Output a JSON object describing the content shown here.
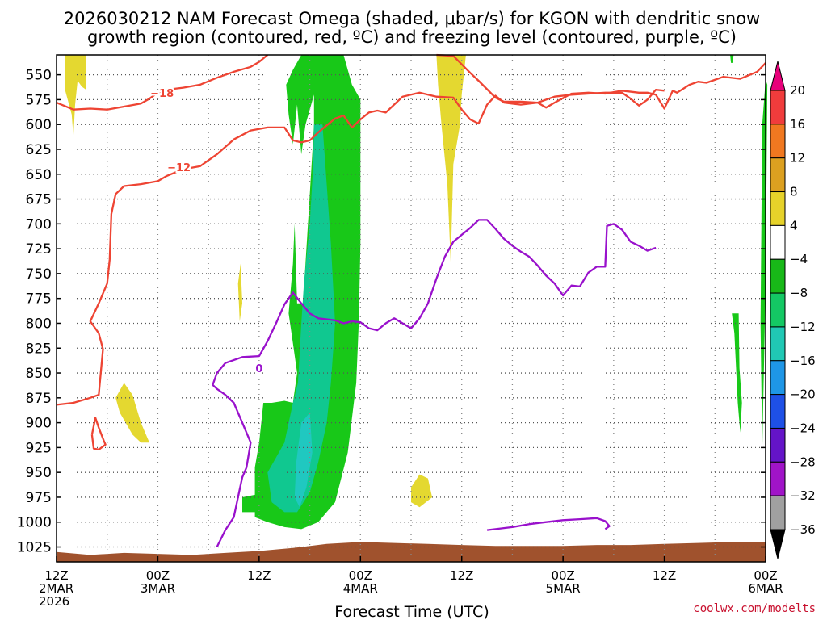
{
  "chart_data": {
    "type": "time-height cross section",
    "title_line1": "2026030212 NAM Forecast Omega (shaded, μbar/s) for KGON with dendritic snow",
    "title_line2": "growth region (contoured, red, ºC) and freezing level (contoured, purple, ºC)",
    "xlabel": "Forecast Time (UTC)",
    "credit": "coolwx.com/modelts",
    "y_axis": {
      "inverted": true,
      "range_hPa": [
        1040,
        530
      ],
      "ticks": [
        "550",
        "575",
        "600",
        "625",
        "650",
        "675",
        "700",
        "725",
        "750",
        "775",
        "800",
        "825",
        "850",
        "875",
        "900",
        "925",
        "950",
        "975",
        "1000",
        "1025"
      ]
    },
    "x_axis": {
      "range_hours": [
        0,
        84
      ],
      "gridlines_every_hours": 6,
      "ticks": [
        {
          "hour": 0,
          "label1": "12Z",
          "label2": "2MAR",
          "label3": "2026"
        },
        {
          "hour": 12,
          "label1": "00Z",
          "label2": "3MAR"
        },
        {
          "hour": 24,
          "label1": "12Z"
        },
        {
          "hour": 36,
          "label1": "00Z",
          "label2": "4MAR"
        },
        {
          "hour": 48,
          "label1": "12Z"
        },
        {
          "hour": 60,
          "label1": "00Z",
          "label2": "5MAR"
        },
        {
          "hour": 72,
          "label1": "12Z"
        },
        {
          "hour": 84,
          "label1": "00Z",
          "label2": "6MAR"
        }
      ]
    },
    "colorbar": {
      "labels": [
        "20",
        "16",
        "12",
        "8",
        "4",
        "−4",
        "−8",
        "−12",
        "−16",
        "−20",
        "−24",
        "−28",
        "−32",
        "−36"
      ],
      "colors": [
        "#e8007a",
        "#f03c3c",
        "#f07820",
        "#dca020",
        "#e6d22a",
        "#ffffff",
        "#18b818",
        "#14c864",
        "#20c8b4",
        "#1e96e6",
        "#1e50e6",
        "#6414c8",
        "#a014c8",
        "#a0a0a0",
        "#000000"
      ]
    },
    "fill_colors": {
      "green": "#18c818",
      "teal": "#10c890",
      "cyan": "#20c8c0",
      "yellow": "#e4d830",
      "ground": "#a0522d"
    },
    "line_colors": {
      "dgz": "#ee4433",
      "freezing": "#9911cc"
    },
    "contours": [
      {
        "name": "minus18-isotherm",
        "label": "−18",
        "label_at": [
          12.5,
          568
        ],
        "points": [
          [
            0,
            578
          ],
          [
            2,
            585
          ],
          [
            4,
            584
          ],
          [
            6,
            585
          ],
          [
            8,
            582
          ],
          [
            10,
            579
          ],
          [
            11,
            574
          ],
          [
            12,
            568
          ],
          [
            13,
            565
          ],
          [
            15,
            563
          ],
          [
            17,
            560
          ],
          [
            19,
            553
          ],
          [
            21,
            547
          ],
          [
            23,
            542
          ],
          [
            24,
            537
          ],
          [
            25,
            530
          ]
        ]
      },
      {
        "name": "minus18-isotherm-right",
        "label": "",
        "points": [
          [
            45,
            530
          ],
          [
            47,
            531
          ],
          [
            49,
            548
          ],
          [
            50,
            556
          ],
          [
            52,
            573
          ],
          [
            53,
            577
          ],
          [
            55,
            577
          ],
          [
            57,
            578
          ],
          [
            58,
            583
          ],
          [
            59,
            578
          ],
          [
            61,
            569
          ],
          [
            63,
            568
          ],
          [
            65,
            569
          ],
          [
            67,
            566
          ],
          [
            69,
            568
          ],
          [
            70,
            568
          ],
          [
            71,
            570
          ],
          [
            72,
            584
          ],
          [
            73,
            566
          ],
          [
            73.5,
            568
          ],
          [
            75,
            560
          ],
          [
            76,
            557
          ],
          [
            77,
            558
          ],
          [
            79,
            552
          ],
          [
            81,
            554
          ],
          [
            83,
            547
          ],
          [
            84,
            538
          ]
        ]
      },
      {
        "name": "minus12-isotherm",
        "label": "−12",
        "label_at": [
          14.5,
          643
        ],
        "points": [
          [
            0,
            882
          ],
          [
            2,
            880
          ],
          [
            4,
            875
          ],
          [
            5,
            872
          ],
          [
            5.5,
            826
          ],
          [
            5,
            810
          ],
          [
            4,
            798
          ],
          [
            5,
            780
          ],
          [
            6,
            760
          ],
          [
            6.3,
            736
          ],
          [
            6.5,
            690
          ],
          [
            7,
            670
          ],
          [
            8,
            662
          ],
          [
            10,
            660
          ],
          [
            12,
            657
          ],
          [
            13,
            652
          ],
          [
            15,
            645
          ],
          [
            17,
            642
          ],
          [
            19,
            630
          ],
          [
            21,
            615
          ],
          [
            23,
            606
          ],
          [
            25,
            603
          ],
          [
            27,
            603
          ],
          [
            28,
            616
          ],
          [
            29,
            618
          ],
          [
            30,
            616
          ],
          [
            31,
            608
          ],
          [
            33,
            594
          ],
          [
            34,
            591
          ],
          [
            35,
            603
          ],
          [
            36,
            595
          ],
          [
            37,
            588
          ],
          [
            38,
            586
          ],
          [
            39,
            588
          ],
          [
            41,
            572
          ],
          [
            43,
            568
          ],
          [
            45,
            572
          ],
          [
            47,
            573
          ],
          [
            48,
            585
          ],
          [
            49,
            595
          ],
          [
            50,
            599
          ],
          [
            51,
            580
          ],
          [
            52,
            571
          ],
          [
            53,
            578
          ],
          [
            55,
            580
          ],
          [
            57,
            578
          ],
          [
            59,
            572
          ],
          [
            61,
            570
          ],
          [
            63,
            569
          ],
          [
            65,
            568
          ],
          [
            67,
            568
          ],
          [
            68,
            574
          ],
          [
            69,
            581
          ],
          [
            70,
            575
          ],
          [
            71,
            565
          ],
          [
            72,
            566
          ]
        ]
      },
      {
        "name": "minus12-isotherm-small",
        "label": "",
        "points": [
          [
            4.2,
            912
          ],
          [
            4.6,
            895
          ],
          [
            5,
            905
          ],
          [
            5.6,
            918
          ],
          [
            5.8,
            922
          ],
          [
            5,
            927
          ],
          [
            4.4,
            926
          ],
          [
            4.2,
            912
          ]
        ]
      },
      {
        "name": "freezing-level",
        "label": "0",
        "label_at": [
          24,
          845
        ],
        "points": [
          [
            19,
            1025
          ],
          [
            20,
            1008
          ],
          [
            21,
            995
          ],
          [
            21.5,
            975
          ],
          [
            22,
            955
          ],
          [
            22.5,
            945
          ],
          [
            23,
            920
          ],
          [
            22,
            900
          ],
          [
            21,
            880
          ],
          [
            20,
            872
          ],
          [
            19,
            866
          ],
          [
            18.5,
            862
          ],
          [
            19,
            850
          ],
          [
            20,
            840
          ],
          [
            22,
            834
          ],
          [
            24,
            833
          ],
          [
            25,
            818
          ],
          [
            26,
            800
          ],
          [
            27,
            781
          ],
          [
            28,
            769
          ],
          [
            29,
            780
          ],
          [
            30,
            790
          ],
          [
            31,
            795
          ],
          [
            32,
            796
          ],
          [
            33,
            797
          ],
          [
            34,
            800
          ],
          [
            35,
            798
          ],
          [
            36,
            799
          ],
          [
            37,
            805
          ],
          [
            38,
            807
          ],
          [
            39,
            800
          ],
          [
            40,
            795
          ],
          [
            41,
            800
          ],
          [
            42,
            805
          ],
          [
            43,
            795
          ],
          [
            44,
            780
          ],
          [
            45,
            755
          ],
          [
            46,
            733
          ],
          [
            47,
            718
          ],
          [
            48,
            711
          ],
          [
            49,
            704
          ],
          [
            50,
            696
          ],
          [
            51,
            696
          ],
          [
            52,
            705
          ],
          [
            53,
            715
          ],
          [
            54,
            722
          ],
          [
            55,
            728
          ],
          [
            56,
            733
          ],
          [
            57,
            742
          ],
          [
            58,
            752
          ],
          [
            59,
            760
          ],
          [
            60,
            772
          ],
          [
            61,
            762
          ],
          [
            62,
            763
          ],
          [
            63,
            749
          ],
          [
            64,
            743
          ],
          [
            65,
            743
          ],
          [
            65.2,
            702
          ],
          [
            66,
            700
          ],
          [
            67,
            706
          ],
          [
            68,
            718
          ],
          [
            69,
            722
          ],
          [
            70,
            727
          ],
          [
            71,
            724
          ]
        ]
      },
      {
        "name": "freezing-level-lower",
        "label": "",
        "points": [
          [
            51,
            1008
          ],
          [
            52,
            1007
          ],
          [
            54,
            1005
          ],
          [
            56,
            1002
          ],
          [
            58,
            1000
          ],
          [
            60,
            998
          ],
          [
            62,
            997
          ],
          [
            64,
            996
          ],
          [
            65,
            999
          ],
          [
            65.5,
            1004
          ],
          [
            65,
            1007
          ]
        ]
      }
    ]
  }
}
